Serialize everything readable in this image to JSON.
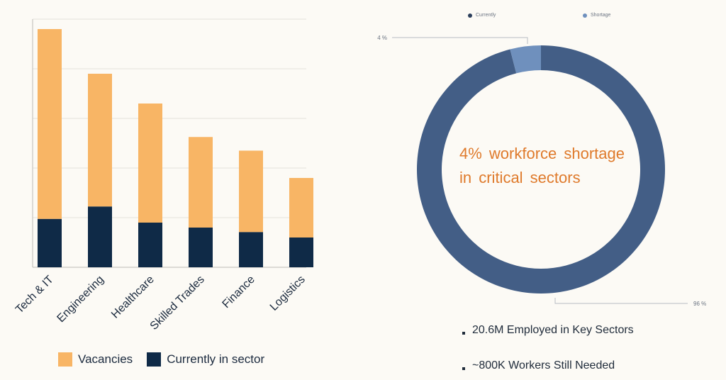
{
  "chart_data": [
    {
      "type": "bar",
      "stacked": true,
      "categories": [
        "Tech & IT",
        "Engineering",
        "Healthcare",
        "Skilled Trades",
        "Finance",
        "Logistics"
      ],
      "series": [
        {
          "name": "Currently in sector",
          "values": [
            1.95,
            2.45,
            1.8,
            1.6,
            1.42,
            1.2
          ],
          "color": "#0f2a47"
        },
        {
          "name": "Vacancies",
          "values": [
            7.65,
            5.35,
            4.8,
            3.65,
            3.28,
            2.4
          ],
          "color": "#f8b565"
        }
      ],
      "ylim": [
        0,
        10
      ],
      "grid": true,
      "legend": "bottom"
    },
    {
      "type": "pie",
      "donut": true,
      "slices": [
        {
          "name": "Currently",
          "value": 96,
          "label": "96 %",
          "color": "#435e86"
        },
        {
          "name": "Shortage",
          "value": 4,
          "label": "4 %",
          "color": "#6f90bd"
        }
      ],
      "legend": "top",
      "center_text": [
        "4% workforce shortage",
        "in critical sectors"
      ]
    }
  ],
  "stats": [
    "20.6M Employed in Key Sectors",
    "~800K Workers Still Needed"
  ]
}
